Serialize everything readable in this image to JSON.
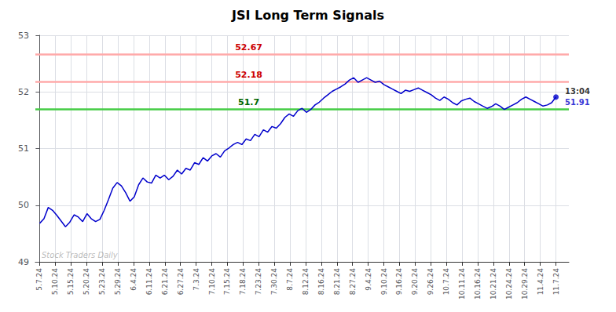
{
  "chart_data": {
    "type": "line",
    "title": "JSI Long Term Signals",
    "color": "#0000cc",
    "x": [
      0,
      1,
      2,
      3,
      4,
      5,
      6,
      7,
      8,
      9,
      10,
      11,
      12,
      13,
      14,
      15,
      16,
      17,
      18,
      19,
      20,
      21,
      22,
      23,
      24,
      25,
      26,
      27,
      28,
      29,
      30,
      31,
      32,
      33,
      34,
      35,
      36,
      37,
      38,
      39,
      40,
      41,
      42,
      43,
      44,
      45,
      46,
      47,
      48,
      49,
      50,
      51,
      52,
      53,
      54,
      55,
      56,
      57,
      58,
      59,
      60,
      61,
      62,
      63,
      64,
      65,
      66,
      67,
      68,
      69,
      70,
      71,
      72,
      73,
      74,
      75,
      76,
      77,
      78,
      79,
      80,
      81,
      82,
      83,
      84,
      85,
      86,
      87,
      88,
      89,
      90,
      91,
      92,
      93,
      94,
      95,
      96,
      97,
      98,
      99,
      100,
      101,
      102,
      103,
      104,
      105,
      106,
      107,
      108,
      109,
      110,
      111,
      112,
      113,
      114,
      115,
      116,
      117,
      118,
      119,
      120
    ],
    "values": [
      49.68,
      49.76,
      49.96,
      49.91,
      49.82,
      49.72,
      49.62,
      49.7,
      49.83,
      49.79,
      49.71,
      49.85,
      49.76,
      49.71,
      49.75,
      49.91,
      50.1,
      50.3,
      50.4,
      50.34,
      50.22,
      50.07,
      50.15,
      50.36,
      50.48,
      50.41,
      50.39,
      50.53,
      50.48,
      50.53,
      50.45,
      50.51,
      50.62,
      50.55,
      50.65,
      50.62,
      50.75,
      50.72,
      50.84,
      50.78,
      50.87,
      50.91,
      50.85,
      50.96,
      51.01,
      51.07,
      51.11,
      51.07,
      51.17,
      51.14,
      51.25,
      51.21,
      51.33,
      51.29,
      51.39,
      51.36,
      51.44,
      51.55,
      51.61,
      51.57,
      51.67,
      51.71,
      51.64,
      51.69,
      51.77,
      51.82,
      51.89,
      51.95,
      52.01,
      52.05,
      52.09,
      52.14,
      52.21,
      52.25,
      52.17,
      52.21,
      52.25,
      52.21,
      52.17,
      52.19,
      52.13,
      52.09,
      52.05,
      52.01,
      51.97,
      52.03,
      52.01,
      52.04,
      52.07,
      52.03,
      51.99,
      51.95,
      51.89,
      51.85,
      51.91,
      51.87,
      51.81,
      51.77,
      51.84,
      51.87,
      51.89,
      51.83,
      51.79,
      51.75,
      51.71,
      51.74,
      51.79,
      51.75,
      51.69,
      51.73,
      51.77,
      51.81,
      51.87,
      51.91,
      51.87,
      51.83,
      51.79,
      51.75,
      51.77,
      51.81,
      51.91
    ],
    "xlim": [
      -1,
      123
    ],
    "xticks": [
      {
        "value": 0,
        "label": "5.7.24"
      },
      {
        "value": 3.6363636363636362,
        "label": "5.10.24"
      },
      {
        "value": 7.2727272727272725,
        "label": "5.15.24"
      },
      {
        "value": 10.909090909090908,
        "label": "5.20.24"
      },
      {
        "value": 14.545454545454545,
        "label": "5.23.24"
      },
      {
        "value": 18.18181818181818,
        "label": "5.29.24"
      },
      {
        "value": 21.818181818181817,
        "label": "6.4.24"
      },
      {
        "value": 25.454545454545453,
        "label": "6.11.24"
      },
      {
        "value": 29.09090909090909,
        "label": "6.21.24"
      },
      {
        "value": 32.72727272727273,
        "label": "6.27.24"
      },
      {
        "value": 36.36363636363636,
        "label": "7.3.24"
      },
      {
        "value": 40,
        "label": "7.10.24"
      },
      {
        "value": 43.63636363636363,
        "label": "7.15.24"
      },
      {
        "value": 47.27272727272727,
        "label": "7.18.24"
      },
      {
        "value": 50.90909090909091,
        "label": "7.23.24"
      },
      {
        "value": 54.54545454545455,
        "label": "7.30.24"
      },
      {
        "value": 58.18181818181818,
        "label": "8.7.24"
      },
      {
        "value": 61.81818181818182,
        "label": "8.12.24"
      },
      {
        "value": 65.45454545454545,
        "label": "8.16.24"
      },
      {
        "value": 69.0909090909091,
        "label": "8.21.24"
      },
      {
        "value": 72.72727272727273,
        "label": "8.27.24"
      },
      {
        "value": 76.36363636363636,
        "label": "9.4.24"
      },
      {
        "value": 80,
        "label": "9.10.24"
      },
      {
        "value": 83.63636363636364,
        "label": "9.16.24"
      },
      {
        "value": 87.27272727272727,
        "label": "9.20.24"
      },
      {
        "value": 90.9090909090909,
        "label": "9.26.24"
      },
      {
        "value": 94.54545454545455,
        "label": "10.7.24"
      },
      {
        "value": 98.18181818181819,
        "label": "10.11.24"
      },
      {
        "value": 101.81818181818181,
        "label": "10.16.24"
      },
      {
        "value": 105.45454545454545,
        "label": "10.21.24"
      },
      {
        "value": 109.0909090909091,
        "label": "10.24.24"
      },
      {
        "value": 112.72727272727273,
        "label": "10.29.24"
      },
      {
        "value": 116.36363636363636,
        "label": "11.4.24"
      },
      {
        "value": 120,
        "label": "11.7.24"
      }
    ],
    "ylim": [
      49,
      53
    ],
    "yticks": [
      49,
      50,
      51,
      52,
      53
    ],
    "grid": true,
    "hlines": [
      {
        "value": 52.67,
        "color": "#ffaaaa",
        "label": "52.67",
        "label_color": "#cc0000"
      },
      {
        "value": 52.18,
        "color": "#ffaaaa",
        "label": "52.18",
        "label_color": "#cc0000"
      },
      {
        "value": 51.7,
        "color": "#44cc44",
        "label": "51.7",
        "label_color": "#006600"
      }
    ],
    "annotations": [
      {
        "text": "13:04",
        "color": "#000000"
      },
      {
        "text": "51.91",
        "color": "#0000cc"
      }
    ],
    "watermark": "Stock Traders Daily"
  }
}
